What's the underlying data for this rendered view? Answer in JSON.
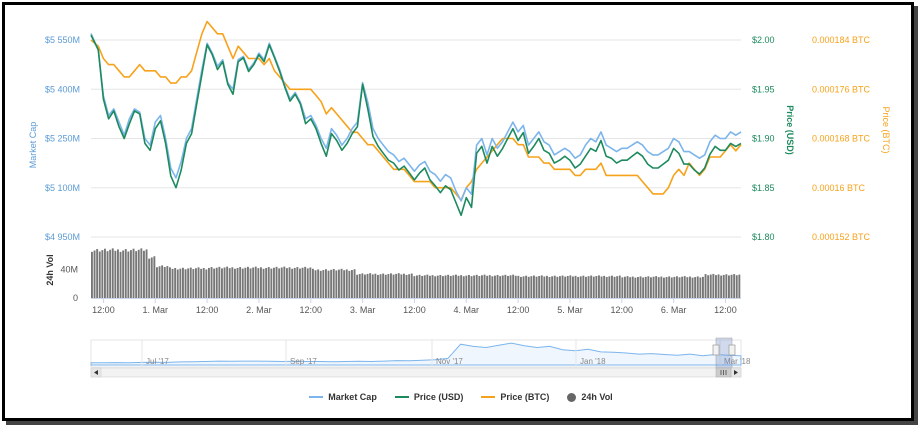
{
  "colors": {
    "market_cap": "#7cb5ec",
    "price_usd": "#1d8a5e",
    "price_btc": "#f7a21b",
    "volume": "#777777",
    "axis_left": "#5b9bd5",
    "axis_usd": "#1d8a5e",
    "axis_btc": "#f7a21b"
  },
  "legend": {
    "market_cap": "Market Cap",
    "price_usd": "Price (USD)",
    "price_btc": "Price (BTC)",
    "volume": "24h Vol"
  },
  "navigator": {
    "labels": [
      "Jul '17",
      "Sep '17",
      "Nov '17",
      "Jan '18",
      "Mar '18"
    ],
    "scroll_left_icon": "arrow-left-icon",
    "scroll_right_icon": "arrow-right-icon",
    "grip_icon": "grip-icon"
  },
  "chart_data": {
    "type": "line",
    "title": "",
    "x_tick_labels": [
      "12:00",
      "1. Mar",
      "12:00",
      "2. Mar",
      "12:00",
      "3. Mar",
      "12:00",
      "4. Mar",
      "12:00",
      "5. Mar",
      "12:00",
      "6. Mar",
      "12:00"
    ],
    "x_ticks_days": [
      0,
      0.5,
      1,
      1.5,
      2,
      2.5,
      3,
      3.5,
      4,
      4.5,
      5,
      5.5,
      6
    ],
    "x_range_days": [
      -0.12,
      6.15
    ],
    "left_axis": {
      "title": "Market Cap",
      "ticks": [
        "$4 950M",
        "$5 100M",
        "$5 250M",
        "$5 400M",
        "$5 550M"
      ],
      "tick_values": [
        4950,
        5100,
        5250,
        5400,
        5550
      ],
      "range": [
        4950,
        5550
      ]
    },
    "usd_axis": {
      "title": "Price (USD)",
      "ticks": [
        "$1.80",
        "$1.85",
        "$1.90",
        "$1.95",
        "$2.00"
      ],
      "tick_values": [
        1.8,
        1.85,
        1.9,
        1.95,
        2.0
      ],
      "range": [
        1.8,
        2.0
      ]
    },
    "btc_axis": {
      "title": "Price (BTC)",
      "ticks": [
        "0.000152 BTC",
        "0.00016 BTC",
        "0.000168 BTC",
        "0.000176 BTC",
        "0.000184 BTC"
      ],
      "tick_values": [
        0.000152,
        0.00016,
        0.000168,
        0.000176,
        0.000184
      ],
      "range": [
        0.000152,
        0.000184
      ]
    },
    "volume_axis": {
      "title": "24h Vol",
      "ticks": [
        "0",
        "40M"
      ],
      "tick_values": [
        0,
        40
      ],
      "range": [
        0,
        75
      ]
    },
    "series": [
      {
        "name": "Market Cap",
        "key": "market_cap",
        "axis": "left",
        "x": [
          -0.12,
          -0.05,
          0.0,
          0.05,
          0.1,
          0.15,
          0.2,
          0.25,
          0.3,
          0.35,
          0.4,
          0.45,
          0.5,
          0.55,
          0.6,
          0.65,
          0.7,
          0.75,
          0.8,
          0.85,
          0.9,
          0.95,
          1.0,
          1.05,
          1.1,
          1.15,
          1.2,
          1.25,
          1.3,
          1.35,
          1.4,
          1.45,
          1.5,
          1.55,
          1.6,
          1.65,
          1.7,
          1.75,
          1.8,
          1.85,
          1.9,
          1.95,
          2.0,
          2.05,
          2.1,
          2.15,
          2.2,
          2.25,
          2.3,
          2.35,
          2.4,
          2.45,
          2.5,
          2.55,
          2.6,
          2.65,
          2.7,
          2.75,
          2.8,
          2.85,
          2.9,
          2.95,
          3.0,
          3.05,
          3.1,
          3.15,
          3.2,
          3.25,
          3.3,
          3.35,
          3.4,
          3.45,
          3.5,
          3.55,
          3.6,
          3.65,
          3.7,
          3.75,
          3.8,
          3.85,
          3.9,
          3.95,
          4.0,
          4.05,
          4.1,
          4.15,
          4.2,
          4.25,
          4.3,
          4.35,
          4.4,
          4.45,
          4.5,
          4.55,
          4.6,
          4.65,
          4.7,
          4.75,
          4.8,
          4.85,
          4.9,
          4.95,
          5.0,
          5.05,
          5.1,
          5.15,
          5.2,
          5.25,
          5.3,
          5.35,
          5.4,
          5.45,
          5.5,
          5.55,
          5.6,
          5.65,
          5.7,
          5.75,
          5.8,
          5.85,
          5.9,
          5.95,
          6.0,
          6.05,
          6.1,
          6.15
        ],
        "values": [
          5570,
          5520,
          5380,
          5320,
          5340,
          5300,
          5260,
          5310,
          5340,
          5330,
          5250,
          5230,
          5300,
          5320,
          5250,
          5160,
          5130,
          5180,
          5250,
          5280,
          5370,
          5460,
          5540,
          5510,
          5470,
          5490,
          5420,
          5400,
          5490,
          5500,
          5460,
          5480,
          5510,
          5490,
          5540,
          5500,
          5460,
          5410,
          5370,
          5390,
          5360,
          5310,
          5320,
          5290,
          5250,
          5220,
          5280,
          5260,
          5230,
          5250,
          5280,
          5300,
          5420,
          5360,
          5280,
          5250,
          5230,
          5210,
          5200,
          5180,
          5190,
          5170,
          5150,
          5170,
          5180,
          5150,
          5140,
          5120,
          5140,
          5130,
          5090,
          5060,
          5100,
          5080,
          5230,
          5250,
          5200,
          5250,
          5220,
          5240,
          5270,
          5300,
          5270,
          5290,
          5230,
          5250,
          5270,
          5240,
          5230,
          5200,
          5210,
          5220,
          5210,
          5190,
          5200,
          5230,
          5250,
          5240,
          5270,
          5230,
          5220,
          5210,
          5220,
          5220,
          5230,
          5240,
          5230,
          5210,
          5200,
          5200,
          5210,
          5220,
          5250,
          5240,
          5210,
          5210,
          5200,
          5190,
          5200,
          5240,
          5260,
          5250,
          5250,
          5270,
          5260,
          5270
        ]
      },
      {
        "name": "Price (USD)",
        "key": "price_usd",
        "axis": "usd",
        "x": [
          -0.12,
          -0.05,
          0.0,
          0.05,
          0.1,
          0.15,
          0.2,
          0.25,
          0.3,
          0.35,
          0.4,
          0.45,
          0.5,
          0.55,
          0.6,
          0.65,
          0.7,
          0.75,
          0.8,
          0.85,
          0.9,
          0.95,
          1.0,
          1.05,
          1.1,
          1.15,
          1.2,
          1.25,
          1.3,
          1.35,
          1.4,
          1.45,
          1.5,
          1.55,
          1.6,
          1.65,
          1.7,
          1.75,
          1.8,
          1.85,
          1.9,
          1.95,
          2.0,
          2.05,
          2.1,
          2.15,
          2.2,
          2.25,
          2.3,
          2.35,
          2.4,
          2.45,
          2.5,
          2.55,
          2.6,
          2.65,
          2.7,
          2.75,
          2.8,
          2.85,
          2.9,
          2.95,
          3.0,
          3.05,
          3.1,
          3.15,
          3.2,
          3.25,
          3.3,
          3.35,
          3.4,
          3.45,
          3.5,
          3.55,
          3.6,
          3.65,
          3.7,
          3.75,
          3.8,
          3.85,
          3.9,
          3.95,
          4.0,
          4.05,
          4.1,
          4.15,
          4.2,
          4.25,
          4.3,
          4.35,
          4.4,
          4.45,
          4.5,
          4.55,
          4.6,
          4.65,
          4.7,
          4.75,
          4.8,
          4.85,
          4.9,
          4.95,
          5.0,
          5.05,
          5.1,
          5.15,
          5.2,
          5.25,
          5.3,
          5.35,
          5.4,
          5.45,
          5.5,
          5.55,
          5.6,
          5.65,
          5.7,
          5.75,
          5.8,
          5.85,
          5.9,
          5.95,
          6.0,
          6.05,
          6.1,
          6.15
        ],
        "values": [
          2.005,
          1.99,
          1.94,
          1.92,
          1.928,
          1.912,
          1.9,
          1.915,
          1.928,
          1.925,
          1.895,
          1.888,
          1.91,
          1.918,
          1.895,
          1.862,
          1.85,
          1.868,
          1.895,
          1.905,
          1.935,
          1.965,
          1.995,
          1.985,
          1.97,
          1.978,
          1.955,
          1.945,
          1.978,
          1.982,
          1.968,
          1.975,
          1.985,
          1.978,
          1.995,
          1.982,
          1.968,
          1.952,
          1.938,
          1.945,
          1.935,
          1.915,
          1.92,
          1.91,
          1.895,
          1.882,
          1.905,
          1.898,
          1.888,
          1.895,
          1.905,
          1.912,
          1.955,
          1.93,
          1.902,
          1.892,
          1.885,
          1.878,
          1.875,
          1.868,
          1.872,
          1.865,
          1.858,
          1.865,
          1.87,
          1.858,
          1.852,
          1.845,
          1.852,
          1.848,
          1.835,
          1.822,
          1.84,
          1.83,
          1.885,
          1.892,
          1.875,
          1.892,
          1.882,
          1.89,
          1.9,
          1.91,
          1.898,
          1.906,
          1.885,
          1.892,
          1.9,
          1.888,
          1.885,
          1.875,
          1.878,
          1.882,
          1.878,
          1.87,
          1.874,
          1.882,
          1.89,
          1.887,
          1.898,
          1.882,
          1.88,
          1.875,
          1.878,
          1.878,
          1.882,
          1.886,
          1.882,
          1.874,
          1.87,
          1.87,
          1.874,
          1.878,
          1.89,
          1.885,
          1.874,
          1.874,
          1.868,
          1.864,
          1.87,
          1.884,
          1.892,
          1.888,
          1.888,
          1.895,
          1.892,
          1.895
        ]
      },
      {
        "name": "Price (BTC)",
        "key": "price_btc",
        "axis": "btc",
        "x": [
          -0.12,
          -0.05,
          0.0,
          0.05,
          0.1,
          0.15,
          0.2,
          0.25,
          0.3,
          0.35,
          0.4,
          0.45,
          0.5,
          0.55,
          0.6,
          0.65,
          0.7,
          0.75,
          0.8,
          0.85,
          0.9,
          0.95,
          1.0,
          1.05,
          1.1,
          1.15,
          1.2,
          1.25,
          1.3,
          1.35,
          1.4,
          1.45,
          1.5,
          1.55,
          1.6,
          1.65,
          1.7,
          1.75,
          1.8,
          1.85,
          1.9,
          1.95,
          2.0,
          2.05,
          2.1,
          2.15,
          2.2,
          2.25,
          2.3,
          2.35,
          2.4,
          2.45,
          2.5,
          2.55,
          2.6,
          2.65,
          2.7,
          2.75,
          2.8,
          2.85,
          2.9,
          2.95,
          3.0,
          3.05,
          3.1,
          3.15,
          3.2,
          3.25,
          3.3,
          3.35,
          3.4,
          3.45,
          3.5,
          3.55,
          3.6,
          3.65,
          3.7,
          3.75,
          3.8,
          3.85,
          3.9,
          3.95,
          4.0,
          4.05,
          4.1,
          4.15,
          4.2,
          4.25,
          4.3,
          4.35,
          4.4,
          4.45,
          4.5,
          4.55,
          4.6,
          4.65,
          4.7,
          4.75,
          4.8,
          4.85,
          4.9,
          4.95,
          5.0,
          5.05,
          5.1,
          5.15,
          5.2,
          5.25,
          5.3,
          5.35,
          5.4,
          5.45,
          5.5,
          5.55,
          5.6,
          5.65,
          5.7,
          5.75,
          5.8,
          5.85,
          5.9,
          5.95,
          6.0,
          6.05,
          6.1,
          6.15
        ],
        "values": [
          0.000184,
          0.000183,
          0.000181,
          0.00018,
          0.00018,
          0.000179,
          0.000178,
          0.000178,
          0.000179,
          0.00018,
          0.000179,
          0.000179,
          0.000179,
          0.000178,
          0.000178,
          0.000177,
          0.000177,
          0.000178,
          0.000178,
          0.000179,
          0.000182,
          0.000185,
          0.000187,
          0.000186,
          0.000185,
          0.000185,
          0.000183,
          0.000181,
          0.000183,
          0.000182,
          0.000181,
          0.000181,
          0.000181,
          0.00018,
          0.000181,
          0.000179,
          0.000178,
          0.000177,
          0.000176,
          0.000176,
          0.000176,
          0.000176,
          0.000176,
          0.000175,
          0.000174,
          0.000172,
          0.000173,
          0.000172,
          0.000171,
          0.00017,
          0.000169,
          0.000169,
          0.000168,
          0.000167,
          0.000167,
          0.000166,
          0.000165,
          0.000164,
          0.000163,
          0.000163,
          0.000163,
          0.000162,
          0.000161,
          0.000161,
          0.000161,
          0.000161,
          0.00016,
          0.00016,
          0.00016,
          0.00016,
          0.000159,
          0.000158,
          0.00016,
          0.000161,
          0.000163,
          0.000164,
          0.000165,
          0.000166,
          0.000167,
          0.000168,
          0.000168,
          0.000168,
          0.000167,
          0.000167,
          0.000165,
          0.000165,
          0.000165,
          0.000164,
          0.000164,
          0.000163,
          0.000163,
          0.000163,
          0.000163,
          0.000162,
          0.000162,
          0.000163,
          0.000163,
          0.000163,
          0.000164,
          0.000162,
          0.000162,
          0.000162,
          0.000162,
          0.000162,
          0.000162,
          0.000162,
          0.000161,
          0.00016,
          0.000159,
          0.000159,
          0.000159,
          0.00016,
          0.000162,
          0.000163,
          0.000162,
          0.000164,
          0.000163,
          0.000162,
          0.000163,
          0.000165,
          0.000165,
          0.000165,
          0.000166,
          0.000167,
          0.000166,
          0.000167
        ]
      },
      {
        "name": "24h Vol",
        "key": "volume",
        "axis": "volume",
        "type": "bar",
        "x_range_days": [
          -0.12,
          6.15
        ],
        "bar_count": 250,
        "segments": [
          {
            "from": -0.12,
            "to": 0.42,
            "value": 68
          },
          {
            "from": 0.42,
            "to": 0.5,
            "value": 58
          },
          {
            "from": 0.5,
            "to": 0.62,
            "value": 45
          },
          {
            "from": 0.62,
            "to": 1.0,
            "value": 42
          },
          {
            "from": 1.0,
            "to": 2.0,
            "value": 43
          },
          {
            "from": 2.0,
            "to": 2.45,
            "value": 40
          },
          {
            "from": 2.45,
            "to": 3.0,
            "value": 34
          },
          {
            "from": 3.0,
            "to": 4.0,
            "value": 32
          },
          {
            "from": 4.0,
            "to": 5.0,
            "value": 31
          },
          {
            "from": 5.0,
            "to": 5.8,
            "value": 30
          },
          {
            "from": 5.8,
            "to": 6.15,
            "value": 33
          }
        ]
      }
    ],
    "navigator_series": {
      "name": "Market Cap",
      "values": [
        0.1,
        0.1,
        0.11,
        0.1,
        0.12,
        0.13,
        0.12,
        0.14,
        0.15,
        0.16,
        0.18,
        0.17,
        0.18,
        0.18,
        0.17,
        0.16,
        0.17,
        0.16,
        0.16,
        0.15,
        0.16,
        0.17,
        0.16,
        0.18,
        0.2,
        0.19,
        0.22,
        0.24,
        0.3,
        0.95,
        0.85,
        0.8,
        0.9,
        1.0,
        0.88,
        0.8,
        0.85,
        0.7,
        0.65,
        0.72,
        0.6,
        0.58,
        0.55,
        0.5,
        0.52,
        0.48,
        0.45,
        0.5,
        0.42,
        0.48,
        0.45,
        0.42
      ]
    }
  }
}
